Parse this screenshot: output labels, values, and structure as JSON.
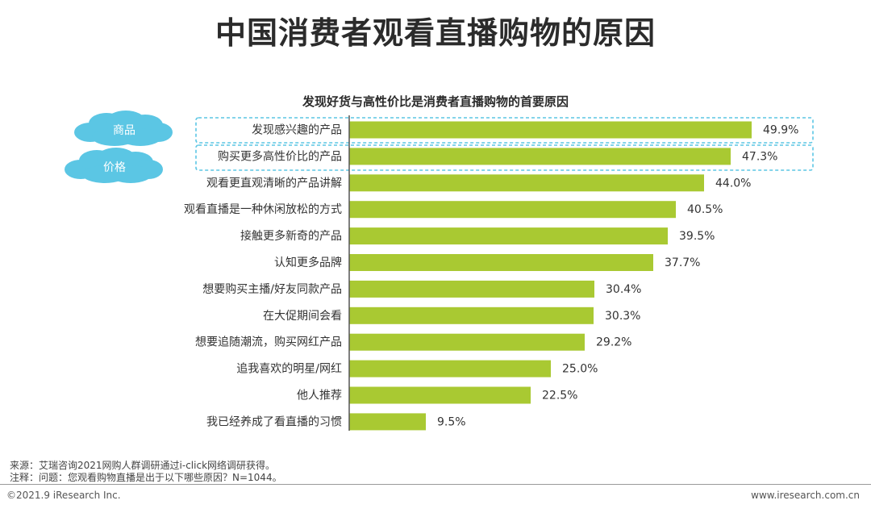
{
  "page": {
    "title": "中国消费者观看直播购物的原因",
    "source": "来源：艾瑞咨询2021网购人群调研通过i-click网络调研获得。",
    "note": "注释：问题：您观看购物直播是出于以下哪些原因？N=1044。",
    "copyright": "©2021.9 iResearch Inc.",
    "website": "www.iresearch.com.cn"
  },
  "callouts": [
    {
      "label": "商品",
      "rows": [
        0
      ]
    },
    {
      "label": "价格",
      "rows": [
        1
      ]
    }
  ],
  "colors": {
    "bar": "#a9c932",
    "callout_fill": "#5bc6e4",
    "callout_border": "#5bc6e4",
    "axis": "#555555"
  },
  "chart_data": {
    "type": "bar",
    "orientation": "horizontal",
    "title": "发现好货与高性价比是消费者直播购物的首要原因",
    "categories": [
      "发现感兴趣的产品",
      "购买更多高性价比的产品",
      "观看更直观清晰的产品讲解",
      "观看直播是一种休闲放松的方式",
      "接触更多新奇的产品",
      "认知更多品牌",
      "想要购买主播/好友同款产品",
      "在大促期间会看",
      "想要追随潮流，购买网红产品",
      "追我喜欢的明星/网红",
      "他人推荐",
      "我已经养成了看直播的习惯"
    ],
    "values": [
      49.9,
      47.3,
      44.0,
      40.5,
      39.5,
      37.7,
      30.4,
      30.3,
      29.2,
      25.0,
      22.5,
      9.5
    ],
    "value_labels": [
      "49.9%",
      "47.3%",
      "44.0%",
      "40.5%",
      "39.5%",
      "37.7%",
      "30.4%",
      "30.3%",
      "29.2%",
      "25.0%",
      "22.5%",
      "9.5%"
    ],
    "xlim": [
      0,
      50
    ],
    "grid": false
  }
}
